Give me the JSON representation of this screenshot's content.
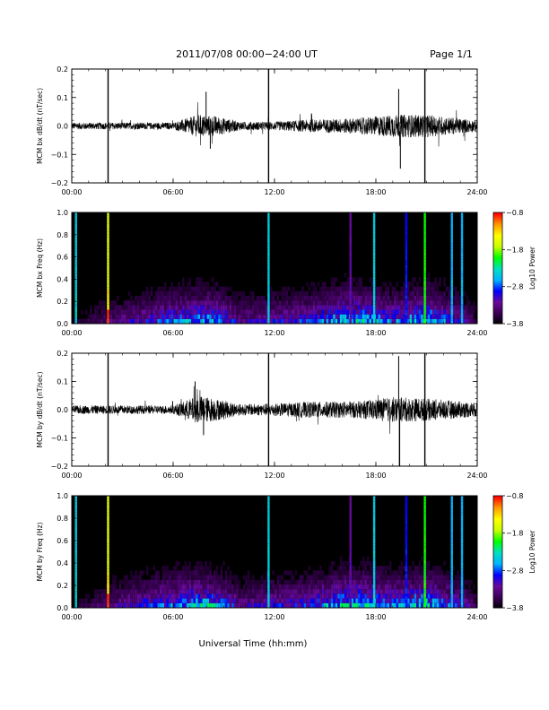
{
  "header": {
    "title": "2011/07/08  00:00−24:00 UT",
    "page": "Page 1/1"
  },
  "footer": {
    "xlabel": "Universal Time (hh:mm)"
  },
  "colors": {
    "trace": "#000000",
    "spectrogram_background": "#000000",
    "colormap": [
      "#000000",
      "#3a0055",
      "#6a0a9a",
      "#0000ff",
      "#00b4ff",
      "#00e0c0",
      "#00ff00",
      "#c8ff00",
      "#ffff00",
      "#ff9900",
      "#ff0000"
    ]
  },
  "chart_data": [
    {
      "type": "line",
      "id": "bx",
      "ylabel": "MCM bx dB/dt (nT/sec)",
      "xlim": [
        0,
        24
      ],
      "ylim": [
        -0.2,
        0.2
      ],
      "yticks": [
        "0.2",
        "0.1",
        "0.0",
        "−0.1",
        "−0.2"
      ],
      "ytick_values": [
        0.2,
        0.1,
        0.0,
        -0.1,
        -0.2
      ],
      "xticks": [
        "00:00",
        "06:00",
        "12:00",
        "18:00",
        "24:00"
      ],
      "noise_envelope": [
        [
          0,
          0.012
        ],
        [
          6,
          0.012
        ],
        [
          7.5,
          0.04
        ],
        [
          8.5,
          0.035
        ],
        [
          10,
          0.015
        ],
        [
          12,
          0.015
        ],
        [
          14,
          0.022
        ],
        [
          17,
          0.028
        ],
        [
          19,
          0.04
        ],
        [
          21,
          0.04
        ],
        [
          24,
          0.02
        ]
      ],
      "spikes": [
        {
          "t": 2.15,
          "y": 0.2
        },
        {
          "t": 2.15,
          "y": -0.2
        },
        {
          "t": 11.65,
          "y": 0.2
        },
        {
          "t": 11.65,
          "y": -0.2
        },
        {
          "t": 7.95,
          "y": 0.12
        },
        {
          "t": 8.2,
          "y": -0.08
        },
        {
          "t": 19.35,
          "y": 0.13
        },
        {
          "t": 19.45,
          "y": -0.15
        },
        {
          "t": 20.9,
          "y": 0.2
        },
        {
          "t": 20.9,
          "y": -0.2
        }
      ]
    },
    {
      "type": "heatmap",
      "id": "bx_freq",
      "ylabel": "MCM bx Freq (Hz)",
      "colorbar_label": "Log10 Power",
      "colorbar_ticks": [
        "−0.8",
        "−1.8",
        "−2.8",
        "−3.8"
      ],
      "colorbar_range": [
        -3.8,
        -0.8
      ],
      "xlim": [
        0,
        24
      ],
      "ylim": [
        0,
        1.0
      ],
      "yticks": [
        "1.0",
        "0.8",
        "0.6",
        "0.4",
        "0.2",
        "0.0"
      ],
      "ytick_values": [
        1.0,
        0.8,
        0.6,
        0.4,
        0.2,
        0.0
      ],
      "xticks": [
        "00:00",
        "06:00",
        "12:00",
        "18:00",
        "24:00"
      ],
      "vertical_lines": [
        {
          "t": 0.25,
          "level": 0.45
        },
        {
          "t": 2.15,
          "level": 0.75
        },
        {
          "t": 11.65,
          "level": 0.45
        },
        {
          "t": 16.5,
          "level": 0.2
        },
        {
          "t": 17.9,
          "level": 0.45
        },
        {
          "t": 19.8,
          "level": 0.3
        },
        {
          "t": 20.9,
          "level": 0.6
        },
        {
          "t": 22.5,
          "level": 0.4
        },
        {
          "t": 23.1,
          "level": 0.4
        }
      ],
      "activity": [
        [
          0,
          0.02
        ],
        [
          7.5,
          0.25
        ],
        [
          8.5,
          0.25
        ],
        [
          10,
          0.12
        ],
        [
          14,
          0.18
        ],
        [
          16.5,
          0.3
        ],
        [
          19,
          0.2
        ],
        [
          21,
          0.3
        ],
        [
          24,
          0.05
        ]
      ]
    },
    {
      "type": "line",
      "id": "by",
      "ylabel": "MCM by dB/dt (nT/sec)",
      "xlim": [
        0,
        24
      ],
      "ylim": [
        -0.2,
        0.2
      ],
      "yticks": [
        "0.2",
        "0.1",
        "0.0",
        "−0.1",
        "−0.2"
      ],
      "ytick_values": [
        0.2,
        0.1,
        0.0,
        -0.1,
        -0.2
      ],
      "xticks": [
        "00:00",
        "06:00",
        "12:00",
        "18:00",
        "24:00"
      ],
      "noise_envelope": [
        [
          0,
          0.015
        ],
        [
          6,
          0.015
        ],
        [
          7.5,
          0.05
        ],
        [
          8.5,
          0.04
        ],
        [
          10,
          0.02
        ],
        [
          12,
          0.022
        ],
        [
          14,
          0.028
        ],
        [
          17,
          0.03
        ],
        [
          19,
          0.045
        ],
        [
          21,
          0.04
        ],
        [
          24,
          0.025
        ]
      ],
      "spikes": [
        {
          "t": 2.15,
          "y": 0.2
        },
        {
          "t": 2.15,
          "y": -0.2
        },
        {
          "t": 11.65,
          "y": 0.2
        },
        {
          "t": 11.65,
          "y": -0.2
        },
        {
          "t": 7.3,
          "y": 0.1
        },
        {
          "t": 7.8,
          "y": -0.09
        },
        {
          "t": 19.35,
          "y": 0.19
        },
        {
          "t": 19.4,
          "y": -0.2
        },
        {
          "t": 20.9,
          "y": 0.2
        },
        {
          "t": 20.9,
          "y": -0.2
        }
      ]
    },
    {
      "type": "heatmap",
      "id": "by_freq",
      "ylabel": "MCM by Freq (Hz)",
      "colorbar_label": "Log10 Power",
      "colorbar_ticks": [
        "−0.8",
        "−1.8",
        "−2.8",
        "−3.8"
      ],
      "colorbar_range": [
        -3.8,
        -0.8
      ],
      "xlim": [
        0,
        24
      ],
      "ylim": [
        0,
        1.0
      ],
      "yticks": [
        "1.0",
        "0.8",
        "0.6",
        "0.4",
        "0.2",
        "0.0"
      ],
      "ytick_values": [
        1.0,
        0.8,
        0.6,
        0.4,
        0.2,
        0.0
      ],
      "xticks": [
        "00:00",
        "06:00",
        "12:00",
        "18:00",
        "24:00"
      ],
      "vertical_lines": [
        {
          "t": 0.25,
          "level": 0.45
        },
        {
          "t": 2.15,
          "level": 0.75
        },
        {
          "t": 11.65,
          "level": 0.45
        },
        {
          "t": 16.5,
          "level": 0.2
        },
        {
          "t": 17.9,
          "level": 0.45
        },
        {
          "t": 19.8,
          "level": 0.3
        },
        {
          "t": 20.9,
          "level": 0.6
        },
        {
          "t": 22.5,
          "level": 0.4
        },
        {
          "t": 23.1,
          "level": 0.4
        }
      ],
      "activity": [
        [
          0,
          0.02
        ],
        [
          7.5,
          0.28
        ],
        [
          8.5,
          0.25
        ],
        [
          10,
          0.12
        ],
        [
          14,
          0.18
        ],
        [
          16.5,
          0.32
        ],
        [
          19,
          0.22
        ],
        [
          21,
          0.3
        ],
        [
          24,
          0.06
        ]
      ]
    }
  ]
}
